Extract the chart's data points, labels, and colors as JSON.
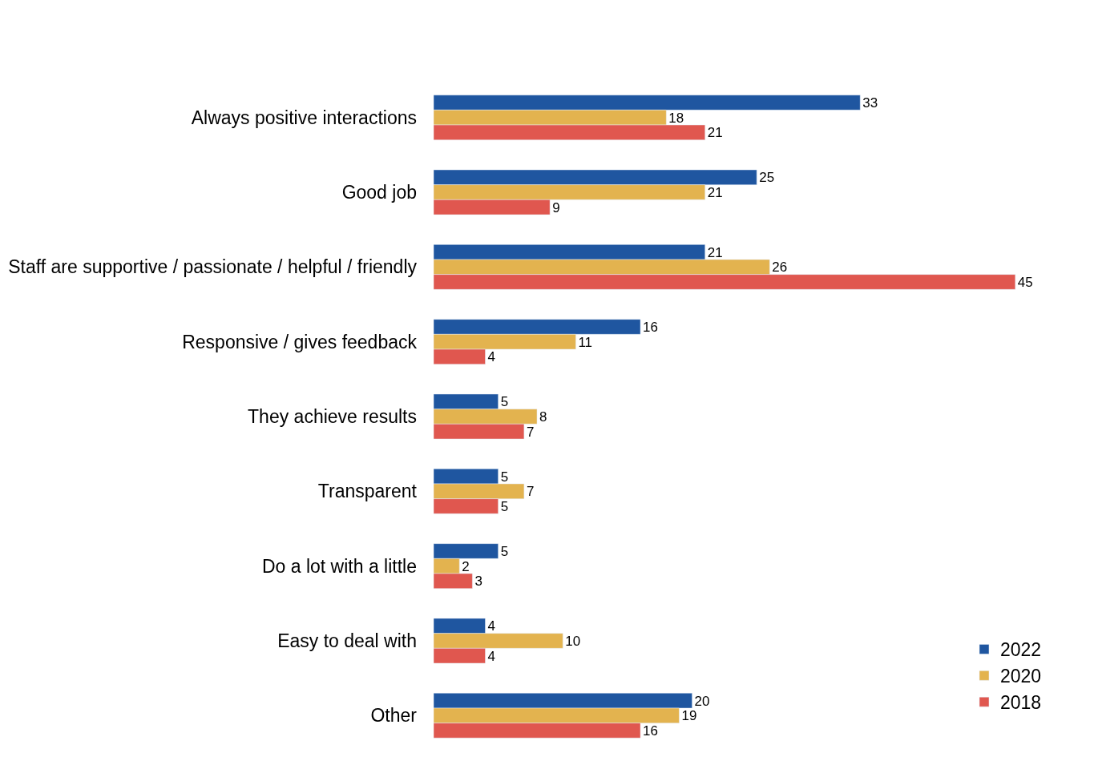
{
  "chart_data": {
    "type": "bar",
    "orientation": "horizontal",
    "categories": [
      "Always positive interactions",
      "Good job",
      "Staff are supportive / passionate / helpful / friendly",
      "Responsive / gives feedback",
      "They achieve results",
      "Transparent",
      "Do a lot with a little",
      "Easy to deal with",
      "Other"
    ],
    "series": [
      {
        "name": "2022",
        "color": "#1f56a0",
        "values": [
          33,
          25,
          21,
          16,
          5,
          5,
          5,
          4,
          20
        ]
      },
      {
        "name": "2020",
        "color": "#e3b34f",
        "values": [
          18,
          21,
          26,
          11,
          8,
          7,
          2,
          10,
          19
        ]
      },
      {
        "name": "2018",
        "color": "#e0574f",
        "values": [
          21,
          9,
          45,
          4,
          7,
          5,
          3,
          4,
          16
        ]
      }
    ],
    "data_labels": true,
    "legend": "bottom right"
  }
}
